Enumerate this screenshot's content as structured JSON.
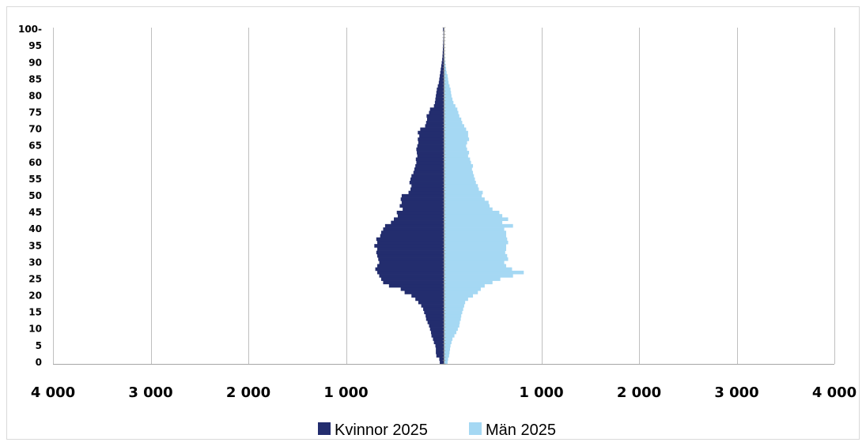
{
  "chart_data": {
    "type": "bar",
    "orientation": "horizontal",
    "layout": "population-pyramid",
    "xlim": [
      -4000,
      4000
    ],
    "x_tick_values": [
      -4000,
      -3000,
      -2000,
      -1000,
      0,
      1000,
      2000,
      3000,
      4000
    ],
    "x_tick_labels": [
      "4 000",
      "3 000",
      "2 000",
      "1 000",
      "",
      "1 000",
      "2 000",
      "3 000",
      "4 000"
    ],
    "y_tick_values": [
      0,
      5,
      10,
      15,
      20,
      25,
      30,
      35,
      40,
      45,
      50,
      55,
      60,
      65,
      70,
      75,
      80,
      85,
      90,
      95,
      100
    ],
    "y_tick_labels": [
      "0",
      "5",
      "10",
      "15",
      "20",
      "25",
      "30",
      "35",
      "40",
      "45",
      "50",
      "55",
      "60",
      "65",
      "70",
      "75",
      "80",
      "85",
      "90",
      "95",
      "100-"
    ],
    "grid": true,
    "legend_position": "bottom",
    "categories": [
      0,
      1,
      2,
      3,
      4,
      5,
      6,
      7,
      8,
      9,
      10,
      11,
      12,
      13,
      14,
      15,
      16,
      17,
      18,
      19,
      20,
      21,
      22,
      23,
      24,
      25,
      26,
      27,
      28,
      29,
      30,
      31,
      32,
      33,
      34,
      35,
      36,
      37,
      38,
      39,
      40,
      41,
      42,
      43,
      44,
      45,
      46,
      47,
      48,
      49,
      50,
      51,
      52,
      53,
      54,
      55,
      56,
      57,
      58,
      59,
      60,
      61,
      62,
      63,
      64,
      65,
      66,
      67,
      68,
      69,
      70,
      71,
      72,
      73,
      74,
      75,
      76,
      77,
      78,
      79,
      80,
      81,
      82,
      83,
      84,
      85,
      86,
      87,
      88,
      89,
      90,
      91,
      92,
      93,
      94,
      95,
      96,
      97,
      98,
      99,
      100
    ],
    "series": [
      {
        "name": "Kvinnor 2025",
        "color": "#232d6e",
        "values": [
          40,
          45,
          75,
          80,
          80,
          85,
          100,
          110,
          125,
          130,
          140,
          150,
          165,
          180,
          185,
          200,
          210,
          230,
          260,
          290,
          330,
          400,
          440,
          560,
          620,
          640,
          660,
          680,
          700,
          680,
          660,
          670,
          680,
          690,
          680,
          710,
          680,
          690,
          650,
          640,
          620,
          600,
          540,
          510,
          470,
          480,
          420,
          450,
          430,
          440,
          430,
          360,
          340,
          330,
          350,
          340,
          330,
          310,
          300,
          290,
          280,
          285,
          270,
          275,
          280,
          270,
          260,
          265,
          250,
          265,
          240,
          190,
          180,
          170,
          175,
          150,
          140,
          100,
          90,
          85,
          80,
          75,
          70,
          60,
          50,
          45,
          40,
          35,
          30,
          25,
          20,
          15,
          12,
          10,
          8,
          6,
          4,
          3,
          2,
          2,
          6
        ]
      },
      {
        "name": "Män 2025",
        "color": "#a5d8f3",
        "values": [
          40,
          45,
          55,
          60,
          65,
          70,
          80,
          90,
          110,
          130,
          145,
          160,
          165,
          175,
          180,
          190,
          200,
          210,
          220,
          250,
          300,
          350,
          380,
          420,
          500,
          580,
          710,
          820,
          700,
          640,
          620,
          660,
          650,
          630,
          640,
          640,
          660,
          650,
          640,
          640,
          620,
          710,
          600,
          660,
          600,
          570,
          500,
          470,
          460,
          420,
          390,
          400,
          360,
          350,
          330,
          320,
          310,
          300,
          290,
          300,
          280,
          270,
          250,
          260,
          240,
          230,
          240,
          260,
          250,
          250,
          230,
          210,
          190,
          180,
          160,
          150,
          140,
          120,
          100,
          90,
          80,
          75,
          70,
          60,
          50,
          45,
          40,
          30,
          25,
          20,
          15,
          12,
          10,
          8,
          6,
          5,
          4,
          3,
          2,
          2,
          8
        ]
      }
    ]
  },
  "legend": {
    "items": [
      {
        "label": "Kvinnor 2025",
        "color": "#232d6e"
      },
      {
        "label": "Män 2025",
        "color": "#a5d8f3"
      }
    ]
  }
}
